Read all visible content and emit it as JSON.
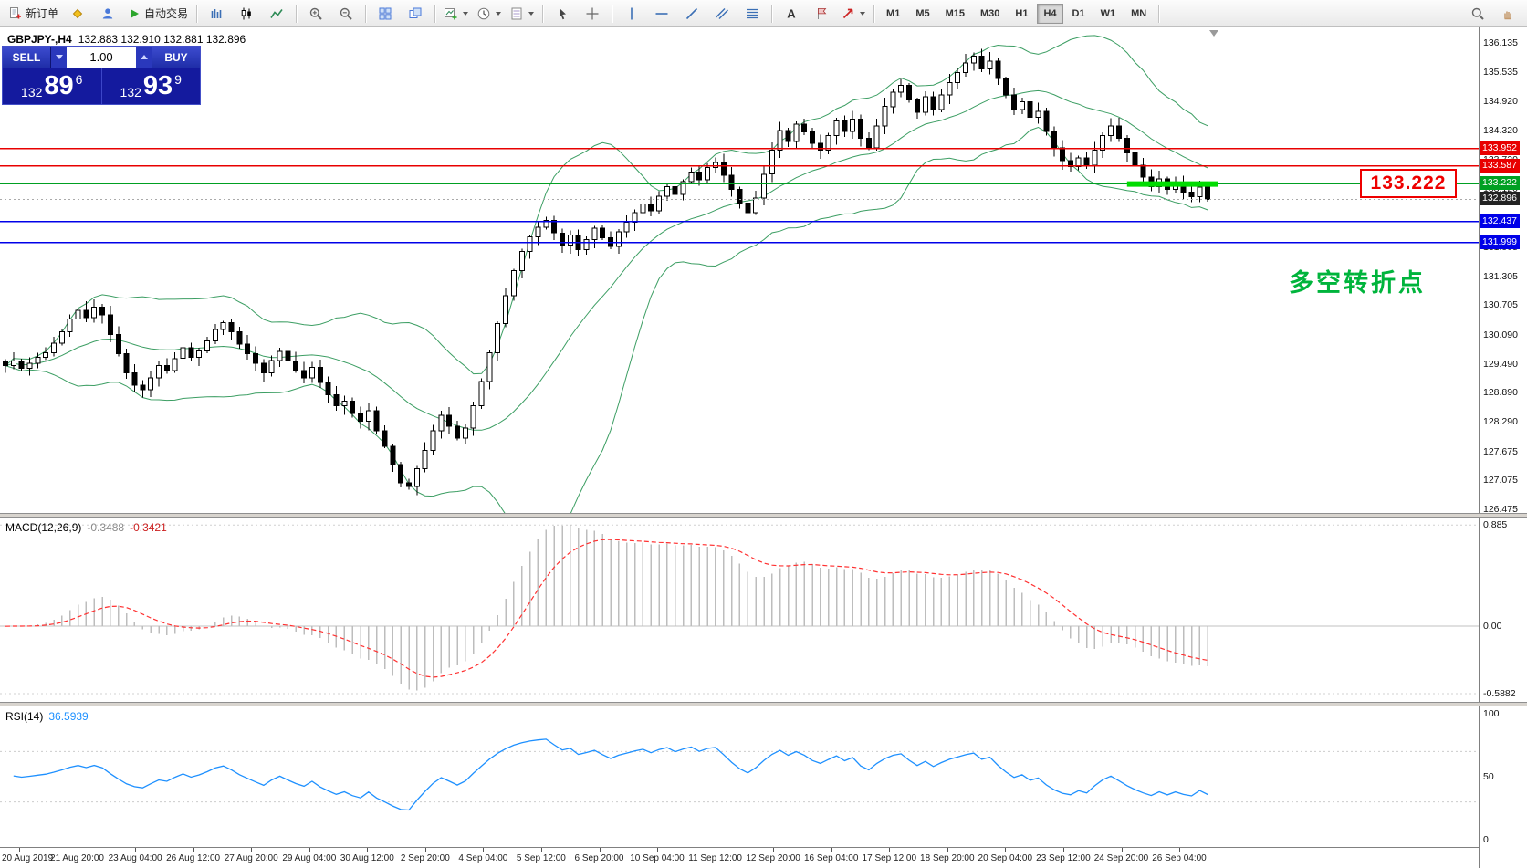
{
  "toolbar": {
    "groups": [
      {
        "buttons": [
          {
            "icon": "new-order",
            "label": "新订单"
          },
          {
            "icon": "yellow-diamond"
          },
          {
            "icon": "profile"
          },
          {
            "icon": "autotrade-play",
            "label": "自动交易"
          }
        ]
      },
      {
        "buttons": [
          {
            "icon": "bar-chart"
          },
          {
            "icon": "candlestick"
          },
          {
            "icon": "line-chart"
          }
        ]
      },
      {
        "buttons": [
          {
            "icon": "zoom-in"
          },
          {
            "icon": "zoom-out"
          }
        ]
      },
      {
        "buttons": [
          {
            "icon": "tile-windows"
          },
          {
            "icon": "cascade-windows"
          }
        ]
      },
      {
        "buttons": [
          {
            "icon": "chart-plus",
            "dropdown": true
          },
          {
            "icon": "clock",
            "dropdown": true
          },
          {
            "icon": "template",
            "dropdown": true
          }
        ]
      },
      {
        "buttons": [
          {
            "icon": "cursor"
          },
          {
            "icon": "crosshair"
          }
        ]
      },
      {
        "buttons": [
          {
            "icon": "vertical-line"
          },
          {
            "icon": "horizontal-line"
          },
          {
            "icon": "trendline"
          },
          {
            "icon": "channel"
          },
          {
            "icon": "fibonacci"
          }
        ]
      },
      {
        "buttons": [
          {
            "icon": "text-a"
          },
          {
            "icon": "text-label"
          },
          {
            "icon": "arrows",
            "dropdown": true
          }
        ]
      }
    ],
    "timeframes": [
      "M1",
      "M5",
      "M15",
      "M30",
      "H1",
      "H4",
      "D1",
      "W1",
      "MN"
    ],
    "active_timeframe": "H4",
    "right_icons": [
      {
        "icon": "search"
      },
      {
        "icon": "hand"
      }
    ]
  },
  "quote_panel": {
    "sell_label": "SELL",
    "buy_label": "BUY",
    "volume": "1.00",
    "sell_price": {
      "prefix": "132",
      "big": "89",
      "sup": "6"
    },
    "buy_price": {
      "prefix": "132",
      "big": "93",
      "sup": "9"
    }
  },
  "chart": {
    "symbol": "GBPJPY-,H4",
    "ohlc_text": "132.883 132.910 132.881 132.896",
    "price_axis_labels": [
      "136.135",
      "135.535",
      "134.920",
      "134.320",
      "133.720",
      "133.120",
      "132.505",
      "131.905",
      "131.305",
      "130.705",
      "130.090",
      "129.490",
      "128.890",
      "128.290",
      "127.675",
      "127.075",
      "126.475"
    ],
    "hlines": [
      {
        "price": 133.952,
        "label": "133.952",
        "color": "#e80000",
        "width": 1.4
      },
      {
        "price": 133.587,
        "label": "133.587",
        "color": "#e80000",
        "width": 1.4
      },
      {
        "price": 133.222,
        "label": "133.222",
        "color": "#00a022",
        "width": 1.6
      },
      {
        "price": 132.437,
        "label": "132.437",
        "color": "#0000e8",
        "width": 1.6
      },
      {
        "price": 131.999,
        "label": "131.999",
        "color": "#0000e8",
        "width": 1.6
      }
    ],
    "current_price": {
      "value": 132.896,
      "label": "132.896",
      "tag_color": "#222222"
    },
    "green_segment": {
      "price": 133.215,
      "from_index": 139,
      "to_index": 150,
      "color": "#00dc00"
    },
    "price_callout": {
      "text": "133.222",
      "color": "#ee0000"
    },
    "annotation": {
      "text": "多空转折点",
      "color": "#00b43c"
    },
    "time_axis_labels": [
      "20 Aug 2019",
      "21 Aug 20:00",
      "23 Aug 04:00",
      "26 Aug 12:00",
      "27 Aug 20:00",
      "29 Aug 04:00",
      "30 Aug 12:00",
      "2 Sep 20:00",
      "4 Sep 04:00",
      "5 Sep 12:00",
      "6 Sep 20:00",
      "10 Sep 04:00",
      "11 Sep 12:00",
      "12 Sep 20:00",
      "16 Sep 04:00",
      "17 Sep 12:00",
      "18 Sep 20:00",
      "20 Sep 04:00",
      "23 Sep 12:00",
      "24 Sep 20:00",
      "26 Sep 04:00"
    ]
  },
  "macd": {
    "label": "MACD(12,26,9)",
    "value_main": "-0.3488",
    "value_signal": "-0.3421",
    "axis_labels": [
      "0.885",
      "0.00",
      "-0.5882"
    ],
    "axis_values": [
      0.885,
      0,
      -0.5882
    ]
  },
  "rsi": {
    "label": "RSI(14)",
    "value": "36.5939",
    "axis_labels": [
      "100",
      "50",
      "0"
    ],
    "axis_values": [
      100,
      50,
      0
    ],
    "levels": [
      70,
      30
    ]
  },
  "chart_data": {
    "type": "candlestick",
    "symbol": "GBPJPY-",
    "timeframe": "H4",
    "title": "GBPJPY- H4 with Bollinger Bands, MACD(12,26,9), RSI(14)",
    "quote": {
      "open": 132.883,
      "high": 132.91,
      "low": 132.881,
      "close": 132.896
    },
    "price_range": {
      "max": 136.46,
      "min": 126.4
    },
    "x_range": [
      "20 Aug 2019",
      "26 Sep 2019 04:00"
    ],
    "closes": [
      129.45,
      129.55,
      129.4,
      129.5,
      129.62,
      129.72,
      129.92,
      130.15,
      130.42,
      130.6,
      130.45,
      130.66,
      130.5,
      130.1,
      129.7,
      129.3,
      129.05,
      128.95,
      129.2,
      129.45,
      129.35,
      129.6,
      129.82,
      129.62,
      129.76,
      129.96,
      130.2,
      130.34,
      130.15,
      129.9,
      129.7,
      129.5,
      129.3,
      129.56,
      129.75,
      129.55,
      129.35,
      129.2,
      129.42,
      129.1,
      128.85,
      128.62,
      128.72,
      128.46,
      128.3,
      128.52,
      128.1,
      127.78,
      127.4,
      127.02,
      126.95,
      127.32,
      127.7,
      128.1,
      128.42,
      128.2,
      127.95,
      128.16,
      128.62,
      129.12,
      129.72,
      130.32,
      130.9,
      131.42,
      131.82,
      132.12,
      132.32,
      132.46,
      132.2,
      131.95,
      132.16,
      131.86,
      132.06,
      132.3,
      132.1,
      131.92,
      132.22,
      132.42,
      132.62,
      132.8,
      132.66,
      132.96,
      133.16,
      133.0,
      133.26,
      133.46,
      133.3,
      133.56,
      133.66,
      133.4,
      133.1,
      132.82,
      132.62,
      132.92,
      133.42,
      133.92,
      134.32,
      134.1,
      134.46,
      134.3,
      134.06,
      133.92,
      134.22,
      134.52,
      134.3,
      134.56,
      134.16,
      133.96,
      134.42,
      134.82,
      135.12,
      135.26,
      134.96,
      134.7,
      135.02,
      134.76,
      135.06,
      135.32,
      135.52,
      135.72,
      135.86,
      135.6,
      135.76,
      135.4,
      135.06,
      134.76,
      134.92,
      134.6,
      134.72,
      134.3,
      133.96,
      133.7,
      133.58,
      133.76,
      133.6,
      133.92,
      134.22,
      134.42,
      134.16,
      133.86,
      133.6,
      133.36,
      133.16,
      133.32,
      133.1,
      133.22,
      133.05,
      132.95,
      133.15,
      132.896
    ],
    "indicators": {
      "bollinger": {
        "period": 20,
        "deviation": 2,
        "color": "#3c9e63"
      },
      "macd": {
        "fast": 12,
        "slow": 26,
        "signal": 9,
        "current_main": -0.3488,
        "current_signal": -0.3421
      },
      "rsi": {
        "period": 14,
        "current": 36.5939
      }
    },
    "legend_position": "none",
    "grid": false
  }
}
